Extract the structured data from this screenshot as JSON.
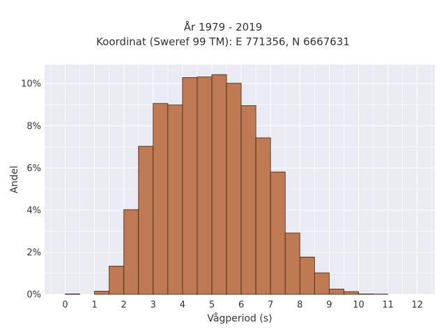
{
  "chart_data": {
    "type": "bar",
    "title": [
      "År 1979 - 2019",
      "Koordinat (Sweref 99 TM): E 771356, N 6667631"
    ],
    "xlabel": "Vågperiod (s)",
    "ylabel": "Andel",
    "xlim": [
      -0.7,
      12.6
    ],
    "ylim": [
      0,
      0.109
    ],
    "x_ticks": [
      0,
      1,
      2,
      3,
      4,
      5,
      6,
      7,
      8,
      9,
      10,
      11,
      12
    ],
    "x_tick_labels": [
      "0",
      "1",
      "2",
      "3",
      "4",
      "5",
      "6",
      "7",
      "8",
      "9",
      "10",
      "11",
      "12"
    ],
    "y_ticks": [
      0,
      0.02,
      0.04,
      0.06,
      0.08,
      0.1
    ],
    "y_tick_labels": [
      "0%",
      "2%",
      "4%",
      "6%",
      "8%",
      "10%"
    ],
    "bin_width": 0.5,
    "bin_starts": [
      0,
      0.5,
      1,
      1.5,
      2,
      2.5,
      3,
      3.5,
      4,
      4.5,
      5,
      5.5,
      6,
      6.5,
      7,
      7.5,
      8,
      8.5,
      9,
      9.5,
      10,
      10.5,
      11,
      11.5
    ],
    "values": [
      0.0002,
      0.0,
      0.0015,
      0.0134,
      0.0402,
      0.0703,
      0.0906,
      0.0899,
      0.1029,
      0.1032,
      0.1043,
      0.1002,
      0.0896,
      0.0743,
      0.0581,
      0.0291,
      0.0177,
      0.0102,
      0.0025,
      0.0013,
      0.0002,
      0.0001,
      0.0,
      0.0
    ],
    "grid": true
  },
  "colors": {
    "bar_fill": "#be7a53",
    "bar_stroke": "#3b2414",
    "plot_bg": "#eaeaf2",
    "grid": "#ffffff"
  }
}
